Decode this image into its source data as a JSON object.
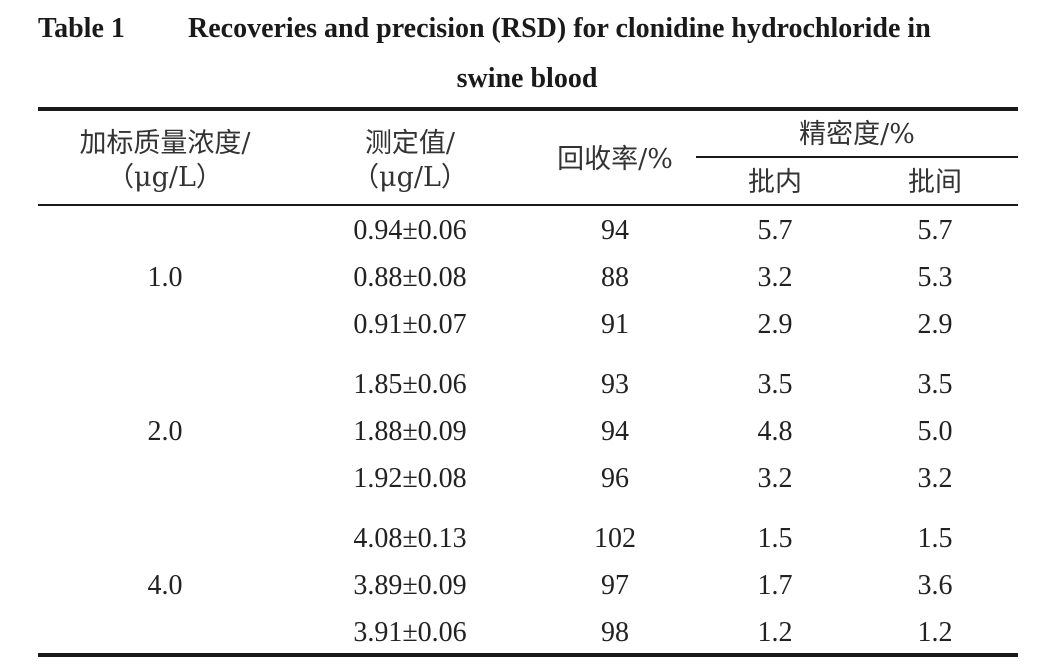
{
  "caption": {
    "label": "Table 1",
    "title_line1": "Recoveries and precision (RSD) for clonidine hydrochloride in",
    "title_line2": "swine blood"
  },
  "headers": {
    "col1_line1": "加标质量浓度/",
    "col1_line2": "（μg/L）",
    "col2_line1": "测定值/",
    "col2_line2": "（μg/L）",
    "col3": "回收率/%",
    "precision_group": "精密度/%",
    "col4": "批内",
    "col5": "批间"
  },
  "groups": [
    {
      "spiked": "1.0",
      "rows": [
        {
          "measured": "0.94±0.06",
          "recovery": "94",
          "intra": "5.7",
          "inter": "5.7"
        },
        {
          "measured": "0.88±0.08",
          "recovery": "88",
          "intra": "3.2",
          "inter": "5.3"
        },
        {
          "measured": "0.91±0.07",
          "recovery": "91",
          "intra": "2.9",
          "inter": "2.9"
        }
      ]
    },
    {
      "spiked": "2.0",
      "rows": [
        {
          "measured": "1.85±0.06",
          "recovery": "93",
          "intra": "3.5",
          "inter": "3.5"
        },
        {
          "measured": "1.88±0.09",
          "recovery": "94",
          "intra": "4.8",
          "inter": "5.0"
        },
        {
          "measured": "1.92±0.08",
          "recovery": "96",
          "intra": "3.2",
          "inter": "3.2"
        }
      ]
    },
    {
      "spiked": "4.0",
      "rows": [
        {
          "measured": "4.08±0.13",
          "recovery": "102",
          "intra": "1.5",
          "inter": "1.5"
        },
        {
          "measured": "3.89±0.09",
          "recovery": "97",
          "intra": "1.7",
          "inter": "3.6"
        },
        {
          "measured": "3.91±0.06",
          "recovery": "98",
          "intra": "1.2",
          "inter": "1.2"
        }
      ]
    }
  ]
}
